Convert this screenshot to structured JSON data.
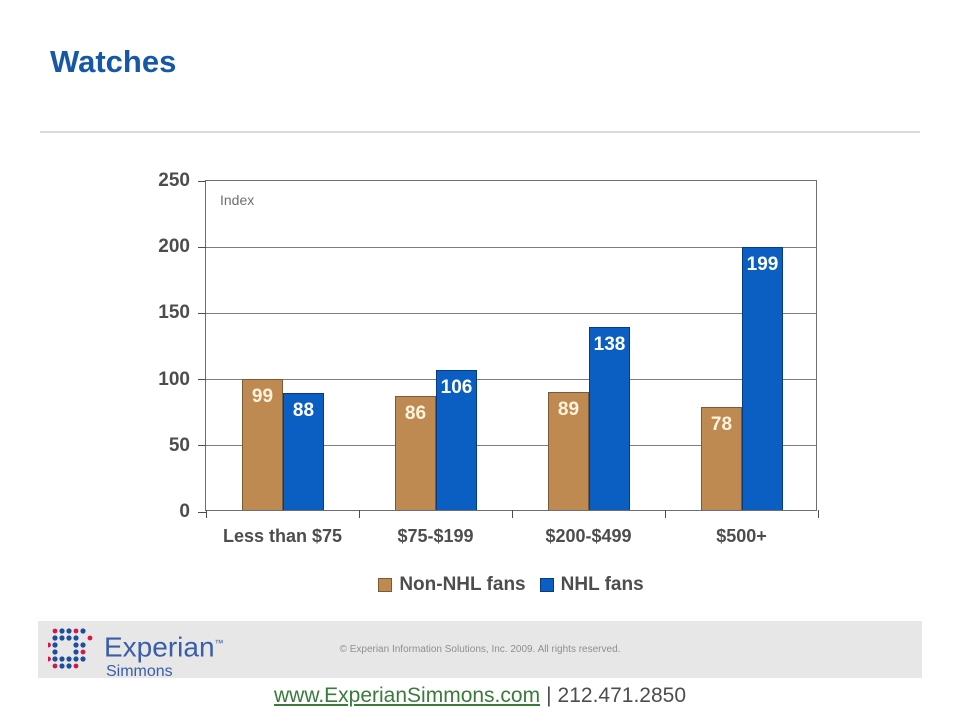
{
  "title": "Watches",
  "chart_data": {
    "type": "bar",
    "title": "",
    "axis_note": "Index",
    "categories": [
      "Less than $75",
      "$75-$199",
      "$200-$499",
      "$500+"
    ],
    "series": [
      {
        "name": "Non-NHL fans",
        "values": [
          99,
          86,
          89,
          78
        ],
        "color": "#BE8A52",
        "label_color": "#FBF3DC"
      },
      {
        "name": "NHL fans",
        "values": [
          88,
          106,
          138,
          199
        ],
        "color": "#0B5FC3",
        "label_color": "#FFFFFF"
      }
    ],
    "ylim": [
      0,
      250
    ],
    "yticks": [
      0,
      50,
      100,
      150,
      200,
      250
    ],
    "grid": true,
    "legend_position": "bottom"
  },
  "footer": {
    "logo_name": "Experian",
    "logo_tm": "TM",
    "logo_sub": "Simmons",
    "copyright": "© Experian Information Solutions, Inc. 2009.  All rights reserved.",
    "url": "www.ExperianSimmons.com",
    "separator": "|",
    "phone": "212.471.2850"
  },
  "colors": {
    "title": "#1558A7",
    "non_nhl_bar": "#BE8A52",
    "nhl_bar": "#0B5FC3",
    "url_green": "#3A7A3A",
    "footer_bg": "#E7E7E7"
  }
}
